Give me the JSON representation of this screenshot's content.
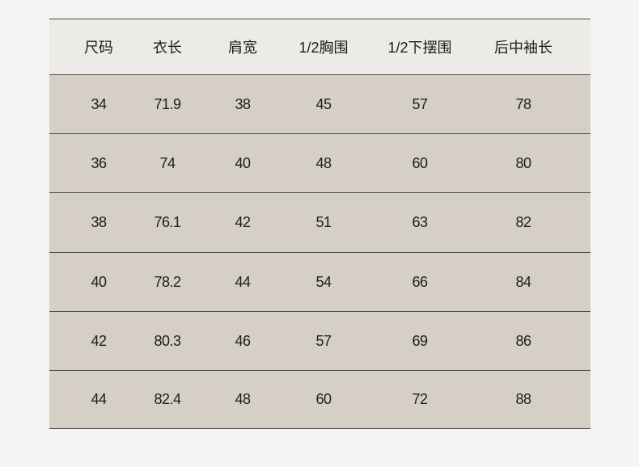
{
  "headers": [
    "尺码",
    "衣长",
    "肩宽",
    "1/2胸围",
    "1/2下摆围",
    "后中袖长"
  ],
  "rows": [
    [
      "34",
      "71.9",
      "38",
      "45",
      "57",
      "78"
    ],
    [
      "36",
      "74",
      "40",
      "48",
      "60",
      "80"
    ],
    [
      "38",
      "76.1",
      "42",
      "51",
      "63",
      "82"
    ],
    [
      "40",
      "78.2",
      "44",
      "54",
      "66",
      "84"
    ],
    [
      "42",
      "80.3",
      "46",
      "57",
      "69",
      "86"
    ],
    [
      "44",
      "82.4",
      "48",
      "60",
      "72",
      "88"
    ]
  ]
}
